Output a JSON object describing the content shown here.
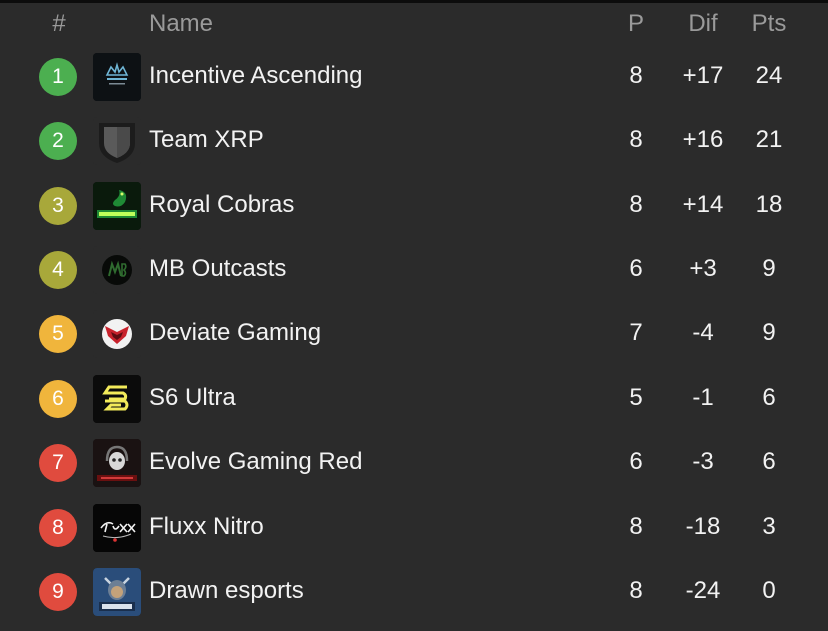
{
  "colors": {
    "background": "#2b2b2b",
    "promotion": "#4caf50",
    "upper": "#a8a83a",
    "middle": "#f0b53c",
    "relegation": "#e04b3e"
  },
  "header": {
    "rank": "#",
    "name": "Name",
    "played": "P",
    "diff": "Dif",
    "points": "Pts"
  },
  "rows": [
    {
      "rank": "1",
      "name": "Incentive Ascending",
      "played": "8",
      "diff": "+17",
      "points": "24",
      "logo": "incentive-ascending-logo",
      "zone": "promotion"
    },
    {
      "rank": "2",
      "name": "Team XRP",
      "played": "8",
      "diff": "+16",
      "points": "21",
      "logo": "shield-placeholder-logo",
      "zone": "promotion"
    },
    {
      "rank": "3",
      "name": "Royal Cobras",
      "played": "8",
      "diff": "+14",
      "points": "18",
      "logo": "royal-cobras-logo",
      "zone": "upper"
    },
    {
      "rank": "4",
      "name": "MB Outcasts",
      "played": "6",
      "diff": "+3",
      "points": "9",
      "logo": "mb-outcasts-logo",
      "zone": "upper"
    },
    {
      "rank": "5",
      "name": "Deviate Gaming",
      "played": "7",
      "diff": "-4",
      "points": "9",
      "logo": "deviate-gaming-logo",
      "zone": "middle"
    },
    {
      "rank": "6",
      "name": "S6 Ultra",
      "played": "5",
      "diff": "-1",
      "points": "6",
      "logo": "s6-ultra-logo",
      "zone": "middle"
    },
    {
      "rank": "7",
      "name": "Evolve Gaming Red",
      "played": "6",
      "diff": "-3",
      "points": "6",
      "logo": "evolve-gaming-logo",
      "zone": "relegation"
    },
    {
      "rank": "8",
      "name": "Fluxx Nitro",
      "played": "8",
      "diff": "-18",
      "points": "3",
      "logo": "fluxx-nitro-logo",
      "zone": "relegation"
    },
    {
      "rank": "9",
      "name": "Drawn esports",
      "played": "8",
      "diff": "-24",
      "points": "0",
      "logo": "drawn-esports-logo",
      "zone": "relegation"
    }
  ]
}
